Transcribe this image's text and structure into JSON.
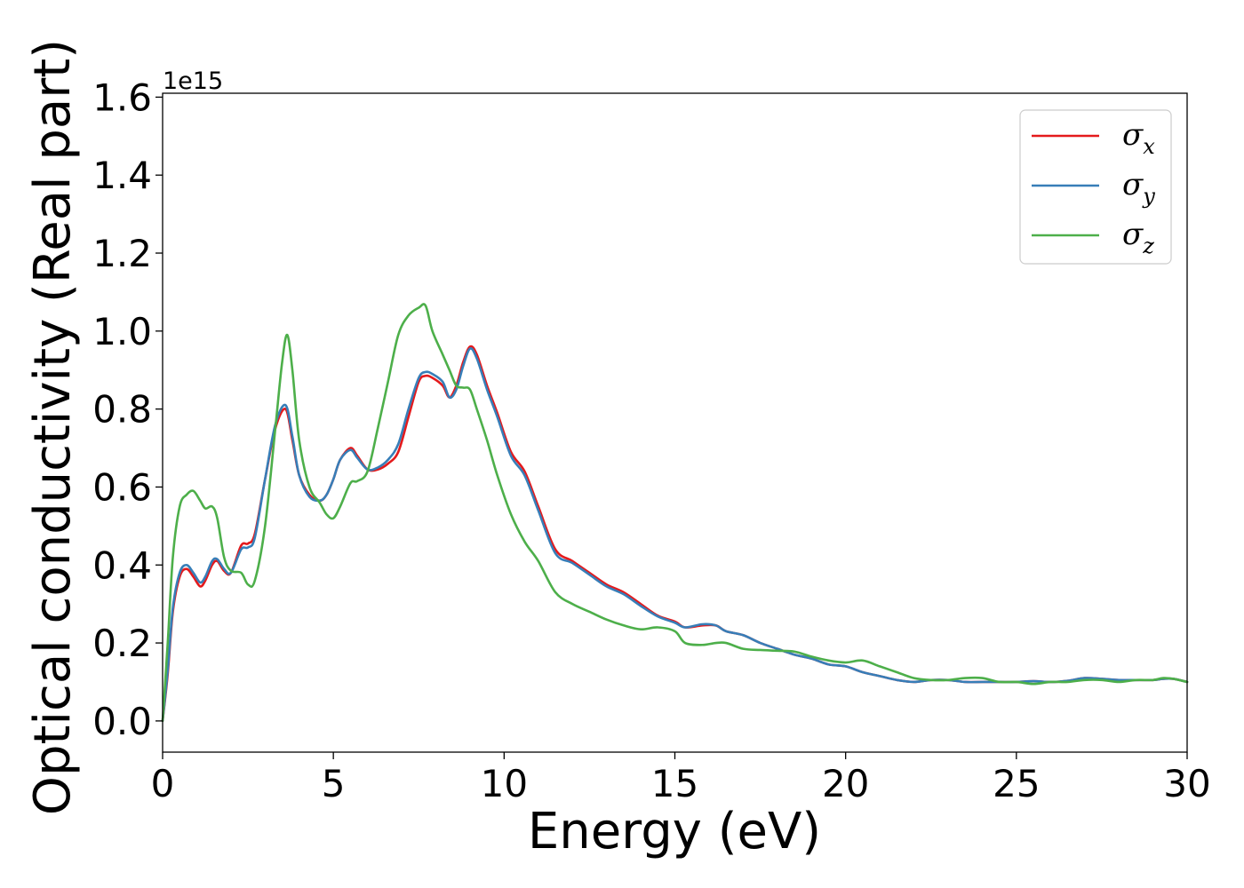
{
  "chart_data": {
    "type": "line",
    "xlabel": "Energy (eV)",
    "ylabel": "Optical conductivity (Real part)",
    "y_offset_label": "1e15",
    "xlim": [
      0,
      30
    ],
    "ylim": [
      -0.08,
      1.61
    ],
    "xticks": [
      0,
      5,
      10,
      15,
      20,
      25,
      30
    ],
    "xtick_labels": [
      "0",
      "5",
      "10",
      "15",
      "20",
      "25",
      "30"
    ],
    "yticks": [
      0.0,
      0.2,
      0.4,
      0.6,
      0.8,
      1.0,
      1.2,
      1.4,
      1.6
    ],
    "ytick_labels": [
      "0.0",
      "0.2",
      "0.4",
      "0.6",
      "0.8",
      "1.0",
      "1.2",
      "1.4",
      "1.6"
    ],
    "grid": false,
    "legend_position": "top-right",
    "series": [
      {
        "name": "σx",
        "symbol": "σ",
        "subscript": "x",
        "color": "#e41a1c",
        "x": [
          0,
          0.15,
          0.3,
          0.5,
          0.7,
          0.9,
          1.1,
          1.25,
          1.45,
          1.6,
          1.8,
          2.0,
          2.3,
          2.5,
          2.7,
          3.0,
          3.3,
          3.6,
          3.8,
          4.0,
          4.3,
          4.6,
          4.8,
          5.0,
          5.2,
          5.5,
          5.7,
          6.0,
          6.3,
          6.6,
          6.9,
          7.2,
          7.5,
          7.7,
          7.9,
          8.2,
          8.4,
          8.6,
          8.8,
          9.0,
          9.2,
          9.5,
          9.8,
          10.2,
          10.6,
          11.0,
          11.5,
          12.0,
          12.5,
          13.0,
          13.5,
          14.0,
          14.5,
          15.0,
          15.3,
          15.8,
          16.2,
          16.5,
          17.0,
          17.5,
          18.0,
          18.5,
          19.0,
          19.5,
          20.0,
          20.5,
          21.0,
          21.5,
          22.0,
          22.5,
          23.0,
          23.5,
          24.0,
          24.5,
          25.0,
          25.5,
          26.0,
          26.5,
          27.0,
          27.5,
          28.0,
          28.5,
          29.0,
          29.3,
          29.6,
          30.0
        ],
        "y": [
          0.0,
          0.12,
          0.28,
          0.37,
          0.39,
          0.37,
          0.345,
          0.36,
          0.4,
          0.41,
          0.385,
          0.38,
          0.45,
          0.455,
          0.48,
          0.62,
          0.75,
          0.8,
          0.72,
          0.63,
          0.58,
          0.565,
          0.58,
          0.62,
          0.67,
          0.7,
          0.68,
          0.645,
          0.645,
          0.66,
          0.69,
          0.78,
          0.87,
          0.885,
          0.88,
          0.86,
          0.83,
          0.86,
          0.92,
          0.96,
          0.94,
          0.86,
          0.79,
          0.69,
          0.64,
          0.55,
          0.44,
          0.41,
          0.38,
          0.35,
          0.33,
          0.3,
          0.27,
          0.255,
          0.24,
          0.245,
          0.245,
          0.23,
          0.22,
          0.2,
          0.185,
          0.17,
          0.16,
          0.145,
          0.14,
          0.125,
          0.115,
          0.105,
          0.1,
          0.105,
          0.105,
          0.1,
          0.1,
          0.1,
          0.1,
          0.102,
          0.1,
          0.103,
          0.11,
          0.108,
          0.105,
          0.105,
          0.105,
          0.108,
          0.108,
          0.1
        ]
      },
      {
        "name": "σy",
        "symbol": "σ",
        "subscript": "y",
        "color": "#377eb8",
        "x": [
          0,
          0.15,
          0.3,
          0.5,
          0.7,
          0.9,
          1.1,
          1.25,
          1.45,
          1.6,
          1.8,
          2.0,
          2.3,
          2.5,
          2.7,
          3.0,
          3.3,
          3.6,
          3.8,
          4.0,
          4.3,
          4.6,
          4.8,
          5.0,
          5.2,
          5.5,
          5.7,
          6.0,
          6.3,
          6.6,
          6.9,
          7.2,
          7.5,
          7.7,
          7.9,
          8.2,
          8.4,
          8.6,
          8.8,
          9.0,
          9.2,
          9.5,
          9.8,
          10.2,
          10.6,
          11.0,
          11.5,
          12.0,
          12.5,
          13.0,
          13.5,
          14.0,
          14.5,
          15.0,
          15.3,
          15.8,
          16.2,
          16.5,
          17.0,
          17.5,
          18.0,
          18.5,
          19.0,
          19.5,
          20.0,
          20.5,
          21.0,
          21.5,
          22.0,
          22.5,
          23.0,
          23.5,
          24.0,
          24.5,
          25.0,
          25.5,
          26.0,
          26.5,
          27.0,
          27.5,
          28.0,
          28.5,
          29.0,
          29.3,
          29.6,
          30.0
        ],
        "y": [
          0.0,
          0.13,
          0.29,
          0.38,
          0.4,
          0.38,
          0.355,
          0.37,
          0.41,
          0.415,
          0.39,
          0.38,
          0.44,
          0.445,
          0.47,
          0.62,
          0.76,
          0.81,
          0.73,
          0.63,
          0.575,
          0.565,
          0.58,
          0.62,
          0.67,
          0.695,
          0.675,
          0.645,
          0.65,
          0.67,
          0.71,
          0.8,
          0.88,
          0.895,
          0.89,
          0.87,
          0.83,
          0.85,
          0.91,
          0.955,
          0.93,
          0.85,
          0.78,
          0.68,
          0.63,
          0.54,
          0.43,
          0.405,
          0.375,
          0.345,
          0.325,
          0.295,
          0.268,
          0.252,
          0.24,
          0.248,
          0.245,
          0.23,
          0.22,
          0.2,
          0.185,
          0.17,
          0.16,
          0.145,
          0.14,
          0.125,
          0.115,
          0.105,
          0.1,
          0.105,
          0.105,
          0.1,
          0.1,
          0.1,
          0.1,
          0.102,
          0.1,
          0.103,
          0.11,
          0.108,
          0.105,
          0.105,
          0.105,
          0.108,
          0.108,
          0.1
        ]
      },
      {
        "name": "σz",
        "symbol": "σ",
        "subscript": "z",
        "color": "#4daf4a",
        "x": [
          0,
          0.15,
          0.3,
          0.5,
          0.7,
          0.9,
          1.1,
          1.25,
          1.45,
          1.6,
          1.8,
          2.0,
          2.3,
          2.5,
          2.7,
          3.0,
          3.3,
          3.5,
          3.65,
          3.8,
          4.0,
          4.3,
          4.6,
          4.8,
          5.0,
          5.2,
          5.5,
          5.7,
          6.0,
          6.3,
          6.6,
          6.9,
          7.2,
          7.5,
          7.7,
          7.9,
          8.2,
          8.4,
          8.6,
          8.8,
          9.0,
          9.2,
          9.5,
          9.8,
          10.2,
          10.6,
          11.0,
          11.5,
          12.0,
          12.5,
          13.0,
          13.5,
          14.0,
          14.5,
          15.0,
          15.3,
          15.8,
          16.2,
          16.5,
          17.0,
          17.5,
          18.0,
          18.5,
          19.0,
          19.5,
          20.0,
          20.5,
          21.0,
          21.5,
          22.0,
          22.5,
          23.0,
          23.5,
          24.0,
          24.5,
          25.0,
          25.5,
          26.0,
          26.5,
          27.0,
          27.5,
          28.0,
          28.5,
          29.0,
          29.3,
          29.6,
          30.0
        ],
        "y": [
          0.0,
          0.2,
          0.42,
          0.55,
          0.58,
          0.59,
          0.565,
          0.545,
          0.55,
          0.52,
          0.42,
          0.385,
          0.38,
          0.35,
          0.36,
          0.5,
          0.75,
          0.92,
          0.99,
          0.9,
          0.72,
          0.6,
          0.56,
          0.53,
          0.52,
          0.55,
          0.61,
          0.615,
          0.64,
          0.75,
          0.87,
          0.99,
          1.04,
          1.06,
          1.065,
          1.0,
          0.94,
          0.9,
          0.86,
          0.855,
          0.85,
          0.8,
          0.72,
          0.63,
          0.53,
          0.46,
          0.41,
          0.33,
          0.3,
          0.28,
          0.26,
          0.245,
          0.235,
          0.24,
          0.23,
          0.2,
          0.195,
          0.2,
          0.2,
          0.185,
          0.182,
          0.18,
          0.178,
          0.165,
          0.155,
          0.15,
          0.155,
          0.14,
          0.125,
          0.11,
          0.105,
          0.105,
          0.11,
          0.11,
          0.1,
          0.1,
          0.095,
          0.1,
          0.1,
          0.105,
          0.105,
          0.1,
          0.105,
          0.105,
          0.11,
          0.108,
          0.1
        ]
      }
    ]
  }
}
